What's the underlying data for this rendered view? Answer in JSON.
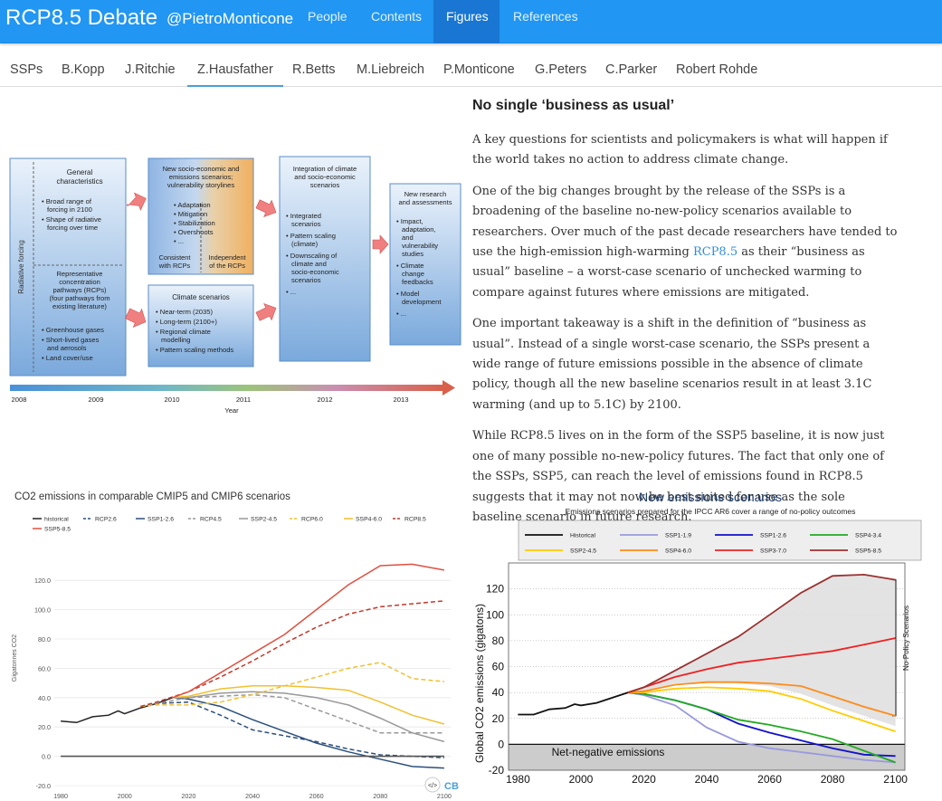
{
  "nav": {
    "brand": "RCP8.5 Debate",
    "handle": "@PietroMonticone",
    "items": [
      "People",
      "Contents",
      "Figures",
      "References"
    ],
    "active": "Figures"
  },
  "tabs": [
    "SSPs",
    "B.Kopp",
    "J.Ritchie",
    "Z.Hausfather",
    "R.Betts",
    "M.Liebreich",
    "P.Monticone",
    "G.Peters",
    "C.Parker",
    "Robert Rohde"
  ],
  "active_tab": "Z.Hausfather",
  "article": {
    "title": "No single ‘business as usual’",
    "p1": "A key questions for scientists and policymakers is what will happen if the world takes no action to address climate change.",
    "p2_before": "One of the big changes brought by the release of the SSPs is a broadening of the baseline no-new-policy scenarios available to researchers. Over much of the past decade researchers have tended to use the high-emission high-warming ",
    "p2_link": "RCP8.5",
    "p2_after": " as their “business as usual” baseline – a worst-case scenario of unchecked warming to compare against futures where emissions are mitigated.",
    "p3": "One important takeaway is a shift in the definition of “business as usual”. Instead of a single worst-case scenario, the SSPs present a wide range of future emissions possible in the absence of climate policy, though all the new baseline scenarios result in at least 3.1C warming (and up to 5.1C) by 2100.",
    "p4": "While RCP8.5 lives on in the form of the SSP5 baseline, it is now just one of many possible no-new-policy futures. The fact that only one of the SSPs, SSP5, can reach the level of emissions found in RCP8.5 suggests that it may not now be best suited for use as the sole baseline scenario in future research."
  },
  "timeline": {
    "side_label": "Radiative forcing",
    "b1_title": "General characteristics",
    "b1_items": [
      "Broad range of forcing in 2100",
      "Shape of radiative forcing over time"
    ],
    "b2_title": "Representative concentration pathways (RCPs) (four pathways from existing literature)",
    "b2_items": [
      "Greenhouse gases",
      "Short-lived gases and aerosols",
      "Land cover/use"
    ],
    "b3_title": "New socio-economic and emissions scenarios; vulnerability storylines",
    "b3_items": [
      "Adaptation",
      "Mitigation",
      "Stabilization",
      "Overshoots",
      "..."
    ],
    "b3_left": "Consistent with RCPs",
    "b3_right": "Independent of the RCPs",
    "b4_title": "Climate scenarios",
    "b4_items": [
      "Near-term (2035)",
      "Long-term (2100+)",
      "Regional climate modelling",
      "Pattern scaling methods"
    ],
    "b5_title": "Integration of climate and socio-economic scenarios",
    "b5_items": [
      "Integrated scenarios",
      "Pattern scaling (climate)",
      "Downscaling of climate and socio-economic scenarios",
      "..."
    ],
    "b6_title": "New research and assessments",
    "b6_items": [
      "Impact, adaptation, and vulnerability studies",
      "Climate change feedbacks",
      "Model development",
      "..."
    ],
    "years": [
      "2008",
      "2009",
      "2010",
      "2011",
      "2012",
      "2013"
    ],
    "axis_label": "Year"
  },
  "chart_data": [
    {
      "type": "line",
      "title": "CO2 emissions in comparable CMIP5 and CMIP6 scenarios",
      "ylabel": "Gigatonnes CO2",
      "xlim": [
        1978,
        2102
      ],
      "ylim": [
        -20,
        130
      ],
      "xticks": [
        1980,
        2000,
        2020,
        2040,
        2060,
        2080,
        2100
      ],
      "yticks": [
        -20,
        0,
        20,
        40,
        60,
        80,
        100,
        120
      ],
      "ytick_labels": [
        "-20.0",
        "0.0",
        "20.0",
        "40.0",
        "60.0",
        "80.0",
        "100.0",
        "120.0"
      ],
      "logo": "CB",
      "series": [
        {
          "name": "historical",
          "color": "#222222",
          "dash": "solid",
          "x": [
            1980,
            1985,
            1990,
            1995,
            1998,
            2000,
            2005,
            2010,
            2015
          ],
          "y": [
            24,
            23,
            27,
            28,
            31,
            29,
            33,
            36,
            40
          ]
        },
        {
          "name": "RCP2.6",
          "color": "#2b4f7d",
          "dash": "dashed",
          "x": [
            2005,
            2010,
            2020,
            2030,
            2040,
            2050,
            2060,
            2070,
            2080,
            2090,
            2100
          ],
          "y": [
            34,
            36,
            37,
            28,
            18,
            14,
            10,
            5,
            1,
            0,
            -1
          ]
        },
        {
          "name": "SSP1-2.6",
          "color": "#2b4f7d",
          "dash": "solid",
          "x": [
            2015,
            2020,
            2030,
            2040,
            2050,
            2060,
            2070,
            2080,
            2090,
            2100
          ],
          "y": [
            40,
            39,
            34,
            25,
            17,
            9,
            3,
            -2,
            -7,
            -8
          ]
        },
        {
          "name": "RCP4.5",
          "color": "#999999",
          "dash": "dashed",
          "x": [
            2005,
            2010,
            2020,
            2030,
            2040,
            2050,
            2060,
            2070,
            2080,
            2090,
            2100
          ],
          "y": [
            34,
            36,
            40,
            41,
            42,
            40,
            32,
            24,
            16,
            16,
            16
          ]
        },
        {
          "name": "SSP2-4.5",
          "color": "#999999",
          "dash": "solid",
          "x": [
            2015,
            2020,
            2030,
            2040,
            2050,
            2060,
            2070,
            2080,
            2090,
            2100
          ],
          "y": [
            40,
            40,
            43,
            44,
            43,
            40,
            35,
            26,
            16,
            10
          ]
        },
        {
          "name": "RCP6.0",
          "color": "#f0c030",
          "dash": "dashed",
          "x": [
            2005,
            2010,
            2020,
            2030,
            2040,
            2050,
            2060,
            2070,
            2080,
            2090,
            2100
          ],
          "y": [
            34,
            35,
            35,
            37,
            42,
            48,
            54,
            60,
            64,
            53,
            51
          ]
        },
        {
          "name": "SSP4-6.0",
          "color": "#f0c030",
          "dash": "solid",
          "x": [
            2015,
            2020,
            2030,
            2040,
            2050,
            2060,
            2070,
            2080,
            2090,
            2100
          ],
          "y": [
            40,
            41,
            46,
            48,
            48,
            47,
            45,
            37,
            28,
            22
          ]
        },
        {
          "name": "RCP8.5",
          "color": "#c0392b",
          "dash": "dashed",
          "x": [
            2005,
            2010,
            2020,
            2030,
            2040,
            2050,
            2060,
            2070,
            2080,
            2090,
            2100
          ],
          "y": [
            34,
            37,
            44,
            54,
            65,
            77,
            88,
            97,
            102,
            104,
            106
          ]
        },
        {
          "name": "SSP5-8.5",
          "color": "#e05040",
          "dash": "solid",
          "x": [
            2015,
            2020,
            2030,
            2040,
            2050,
            2060,
            2070,
            2080,
            2090,
            2100
          ],
          "y": [
            40,
            44,
            57,
            70,
            83,
            100,
            117,
            130,
            131,
            127
          ]
        },
        {
          "name": "zero",
          "color": "#555555",
          "dash": "solid",
          "x": [
            1980,
            2100
          ],
          "y": [
            0,
            0
          ]
        }
      ]
    },
    {
      "type": "line",
      "title": "New emissions scenarios",
      "subtitle": "Emissions scenarios prepared for the IPCC AR6 cover a range of no-policy outcomes",
      "ylabel": "Global CO2 emissions (gigatons)",
      "xlim": [
        1977,
        2103
      ],
      "ylim": [
        -20,
        140
      ],
      "xticks": [
        1980,
        2000,
        2020,
        2040,
        2060,
        2080,
        2100
      ],
      "yticks": [
        -20,
        0,
        20,
        40,
        60,
        80,
        100,
        120
      ],
      "band_label": "No-Policy Scenarios",
      "negative_label": "Net-negative emissions",
      "series": [
        {
          "name": "Historical",
          "color": "#111111",
          "x": [
            1980,
            1985,
            1990,
            1995,
            1998,
            2000,
            2005,
            2010,
            2015
          ],
          "y": [
            23,
            23,
            27,
            28,
            31,
            30,
            32,
            36,
            40
          ]
        },
        {
          "name": "SSP1-1.9",
          "color": "#9999dd",
          "x": [
            2015,
            2020,
            2030,
            2040,
            2050,
            2060,
            2070,
            2080,
            2090,
            2100
          ],
          "y": [
            40,
            38,
            30,
            13,
            2,
            -3,
            -6,
            -9,
            -12,
            -14
          ]
        },
        {
          "name": "SSP1-2.6",
          "color": "#1111cc",
          "x": [
            2015,
            2020,
            2030,
            2040,
            2050,
            2060,
            2070,
            2080,
            2090,
            2100
          ],
          "y": [
            40,
            39,
            34,
            27,
            16,
            9,
            3,
            -3,
            -8,
            -9
          ]
        },
        {
          "name": "SSP4-3.4",
          "color": "#22aa22",
          "x": [
            2015,
            2020,
            2030,
            2040,
            2050,
            2060,
            2070,
            2080,
            2090,
            2100
          ],
          "y": [
            40,
            39,
            34,
            27,
            19,
            15,
            10,
            4,
            -5,
            -14
          ]
        },
        {
          "name": "SSP2-4.5",
          "color": "#ffcc00",
          "x": [
            2015,
            2020,
            2030,
            2040,
            2050,
            2060,
            2070,
            2080,
            2090,
            2100
          ],
          "y": [
            40,
            40,
            43,
            44,
            43,
            41,
            35,
            26,
            18,
            10
          ]
        },
        {
          "name": "SSP4-6.0",
          "color": "#ff8c1a",
          "x": [
            2015,
            2020,
            2030,
            2040,
            2050,
            2060,
            2070,
            2080,
            2090,
            2100
          ],
          "y": [
            40,
            41,
            46,
            48,
            48,
            47,
            45,
            37,
            29,
            22
          ]
        },
        {
          "name": "SSP3-7.0",
          "color": "#ee2222",
          "x": [
            2015,
            2020,
            2030,
            2040,
            2050,
            2060,
            2070,
            2080,
            2090,
            2100
          ],
          "y": [
            40,
            44,
            52,
            58,
            63,
            66,
            69,
            72,
            77,
            82
          ]
        },
        {
          "name": "SSP5-8.5",
          "color": "#993333",
          "x": [
            2015,
            2020,
            2030,
            2040,
            2050,
            2060,
            2070,
            2080,
            2090,
            2100
          ],
          "y": [
            40,
            44,
            57,
            70,
            83,
            100,
            117,
            130,
            131,
            127
          ]
        }
      ]
    }
  ]
}
